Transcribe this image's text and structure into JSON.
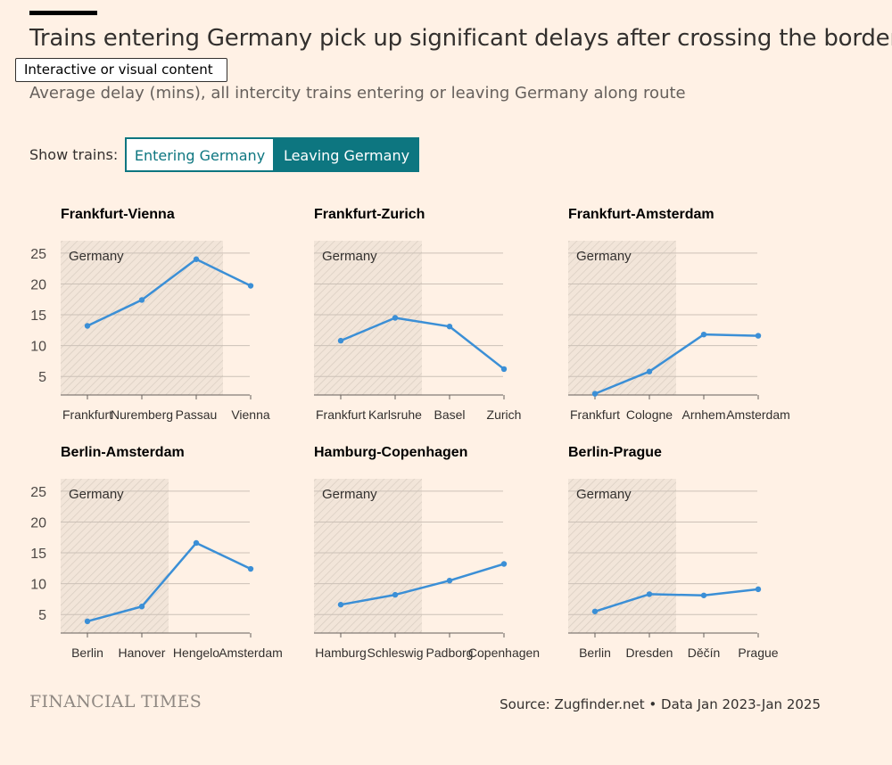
{
  "header": {
    "title": "Trains entering Germany pick up significant delays after crossing the border",
    "tooltip": "Interactive or visual content",
    "subtitle": "Average delay (mins), all intercity trains entering or leaving Germany along route"
  },
  "filter": {
    "label": "Show trains:",
    "options": [
      "Entering Germany",
      "Leaving Germany"
    ],
    "selected": "Leaving Germany"
  },
  "colors": {
    "background": "#fff1e5",
    "line": "#3b8fd6",
    "accent": "#0d7680",
    "grid": "#ccc1b7"
  },
  "chart_data": [
    {
      "type": "line",
      "title": "Frankfurt-Vienna",
      "region_label": "Germany",
      "german_stops": 3,
      "categories": [
        "Frankfurt",
        "Nuremberg",
        "Passau",
        "Vienna"
      ],
      "values": [
        13.2,
        17.4,
        24.0,
        19.7
      ],
      "ylim": [
        2,
        27
      ],
      "yticks": [
        5,
        10,
        15,
        20,
        25
      ],
      "grid": true
    },
    {
      "type": "line",
      "title": "Frankfurt-Zurich",
      "region_label": "Germany",
      "german_stops": 2,
      "categories": [
        "Frankfurt",
        "Karlsruhe",
        "Basel",
        "Zurich"
      ],
      "values": [
        10.8,
        14.5,
        13.1,
        6.2
      ],
      "ylim": [
        2,
        27
      ],
      "yticks": [
        5,
        10,
        15,
        20,
        25
      ],
      "grid": true
    },
    {
      "type": "line",
      "title": "Frankfurt-Amsterdam",
      "region_label": "Germany",
      "german_stops": 2,
      "categories": [
        "Frankfurt",
        "Cologne",
        "Arnhem",
        "Amsterdam"
      ],
      "values": [
        2.2,
        5.8,
        11.8,
        11.6
      ],
      "ylim": [
        2,
        27
      ],
      "yticks": [
        5,
        10,
        15,
        20,
        25
      ],
      "grid": true
    },
    {
      "type": "line",
      "title": "Berlin-Amsterdam",
      "region_label": "Germany",
      "german_stops": 2,
      "categories": [
        "Berlin",
        "Hanover",
        "Hengelo",
        "Amsterdam"
      ],
      "values": [
        3.9,
        6.3,
        16.6,
        12.4
      ],
      "ylim": [
        2,
        27
      ],
      "yticks": [
        5,
        10,
        15,
        20,
        25
      ],
      "grid": true
    },
    {
      "type": "line",
      "title": "Hamburg-Copenhagen",
      "region_label": "Germany",
      "german_stops": 2,
      "categories": [
        "Hamburg",
        "Schleswig",
        "Padborg",
        "Copenhagen"
      ],
      "values": [
        6.6,
        8.2,
        10.5,
        13.2
      ],
      "ylim": [
        2,
        27
      ],
      "yticks": [
        5,
        10,
        15,
        20,
        25
      ],
      "grid": true
    },
    {
      "type": "line",
      "title": "Berlin-Prague",
      "region_label": "Germany",
      "german_stops": 2,
      "categories": [
        "Berlin",
        "Dresden",
        "Děčín",
        "Prague"
      ],
      "values": [
        5.5,
        8.3,
        8.1,
        9.1
      ],
      "ylim": [
        2,
        27
      ],
      "yticks": [
        5,
        10,
        15,
        20,
        25
      ],
      "grid": true
    }
  ],
  "footer": {
    "logo": "FINANCIAL TIMES",
    "source": "Source: Zugfinder.net • Data Jan 2023-Jan 2025"
  }
}
